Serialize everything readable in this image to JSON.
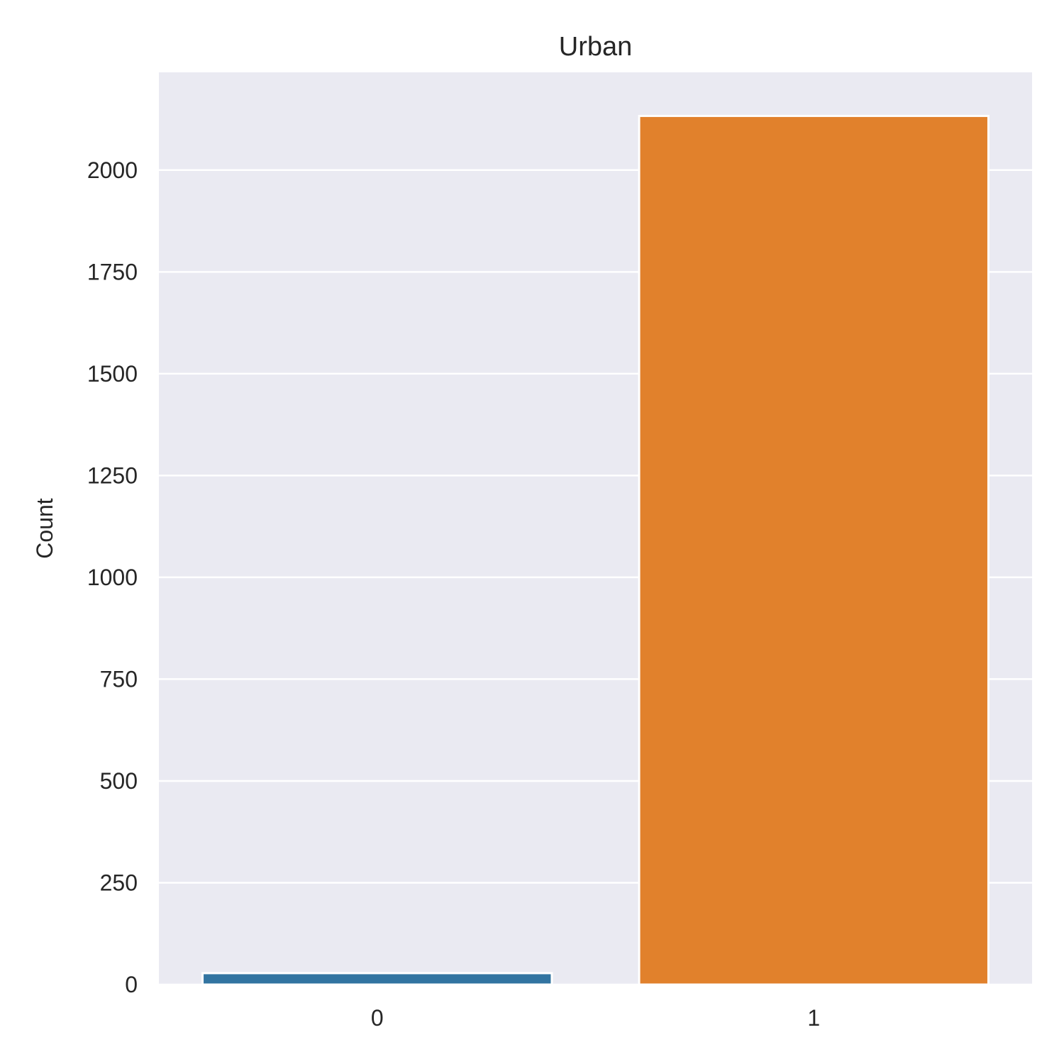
{
  "chart_data": {
    "type": "bar",
    "title": "Urban",
    "xlabel": "",
    "ylabel": "Count",
    "categories": [
      "0",
      "1"
    ],
    "values": [
      28,
      2133
    ],
    "ylim": [
      0,
      2240
    ],
    "yticks": [
      0,
      250,
      500,
      750,
      1000,
      1250,
      1500,
      1750,
      2000
    ],
    "grid": true,
    "colors": {
      "background": "#eaeaf2",
      "grid": "#ffffff",
      "bars": [
        "#3274a1",
        "#e1812c"
      ],
      "bar_edge": "#ffffff",
      "text": "#262626"
    }
  }
}
